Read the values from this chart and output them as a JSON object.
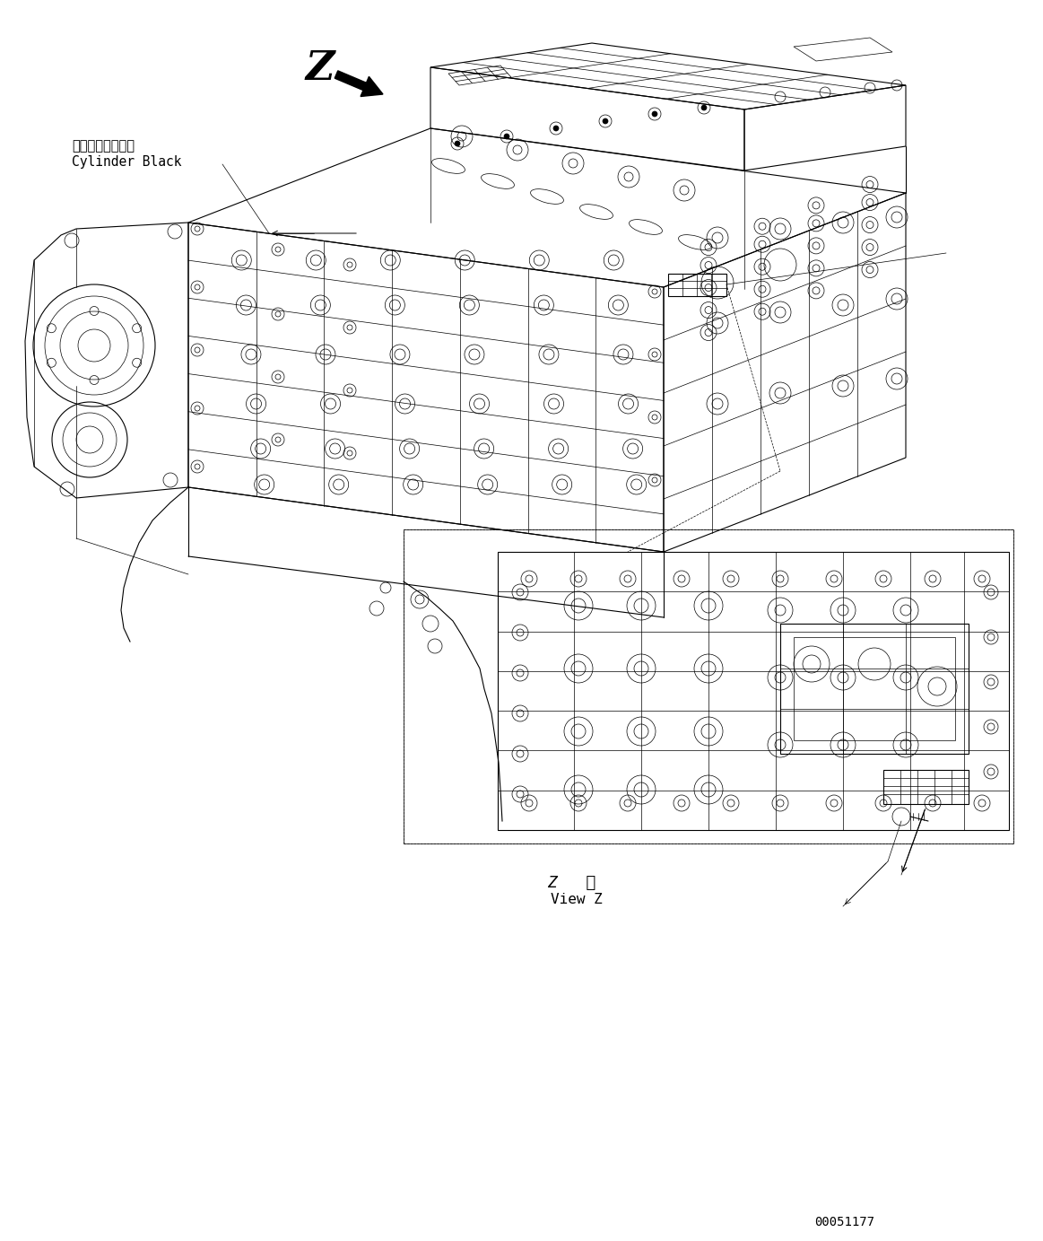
{
  "background_color": "#ffffff",
  "line_color": "#000000",
  "fig_width": 11.63,
  "fig_height": 13.83,
  "dpi": 100,
  "Z_label": "Z",
  "view_z_label": "Z   視",
  "view_z_sub": "View Z",
  "cylinder_block_jp": "シリンダブロック",
  "cylinder_block_en": "Cylinder Black",
  "part_number": "00051177"
}
